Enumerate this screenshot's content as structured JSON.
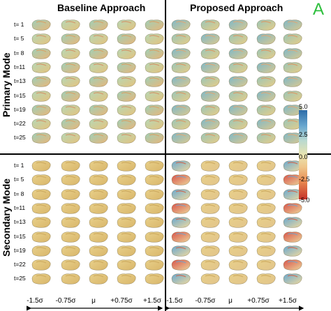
{
  "panel_letter": "A",
  "headers": {
    "baseline": "Baseline Approach",
    "proposed": "Proposed Approach"
  },
  "modes": {
    "primary": "Primary Mode",
    "secondary": "Secondary Mode"
  },
  "time_labels": [
    "t= 1",
    "t= 5",
    "t= 8",
    "t=11",
    "t=13",
    "t=15",
    "t=19",
    "t=22",
    "t=25"
  ],
  "x_labels_left": [
    "-1.5σ",
    "-0.75σ",
    "μ",
    "+0.75σ",
    "+1.5σ"
  ],
  "x_labels_right": [
    "-1.5σ",
    "-0.75σ",
    "μ",
    "+0.75σ",
    "+1.5σ"
  ],
  "colorbar": {
    "ticks": [
      "5.0",
      "2.5",
      "0.0",
      "-2.5",
      "-5.0"
    ]
  }
}
